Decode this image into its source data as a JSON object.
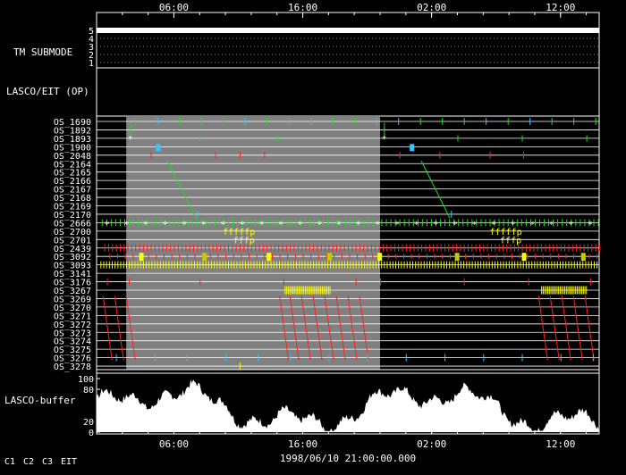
{
  "chart_data": {
    "type": "timeline",
    "time_axis": {
      "top_ticks": [
        "06:00",
        "16:00",
        "02:00",
        "12:00"
      ],
      "bottom_ticks": [
        "06:00",
        "16:00",
        "02:00",
        "12:00"
      ],
      "reference_time": "1998/06/10 21:00:00.000",
      "range_hours": [
        0,
        39
      ],
      "tick_hours": [
        6,
        16,
        26,
        36
      ]
    },
    "panels": {
      "tm_submode": {
        "label": "TM SUBMODE",
        "levels": [
          "5",
          "4",
          "3",
          "2",
          "1"
        ],
        "value": 5
      },
      "lasco_eit": {
        "label": "LASCO/EIT (OP)"
      },
      "os_rows": [
        "OS_1690",
        "OS_1892",
        "OS_1893",
        "OS_1900",
        "OS_2048",
        "OS_2164",
        "OS_2165",
        "OS_2166",
        "OS_2167",
        "OS_2168",
        "OS_2169",
        "OS_2170",
        "OS_2666",
        "OS_2700",
        "OS_2701",
        "OS_2439",
        "OS_3092",
        "OS_3093",
        "OS_3141",
        "OS_3176",
        "OS_3267",
        "OS_3269",
        "OS_3270",
        "OS_3271",
        "OS_3272",
        "OS_3273",
        "OS_3274",
        "OS_3275",
        "OS_3276",
        "OS_3278"
      ],
      "shaded_interval_hours": [
        2.3,
        22.0
      ],
      "lasco_buffer": {
        "label": "LASCO-buffer",
        "y_ticks": [
          0,
          20,
          80,
          100
        ],
        "ylim": [
          0,
          100
        ]
      }
    },
    "legend": [
      {
        "name": "C1",
        "color": "#ff2020"
      },
      {
        "name": "C2",
        "color": "#20e020"
      },
      {
        "name": "C3",
        "color": "#40c0ff"
      },
      {
        "name": "EIT",
        "color": "#ffffff"
      }
    ],
    "annotations": [
      "ff",
      "fp"
    ]
  }
}
